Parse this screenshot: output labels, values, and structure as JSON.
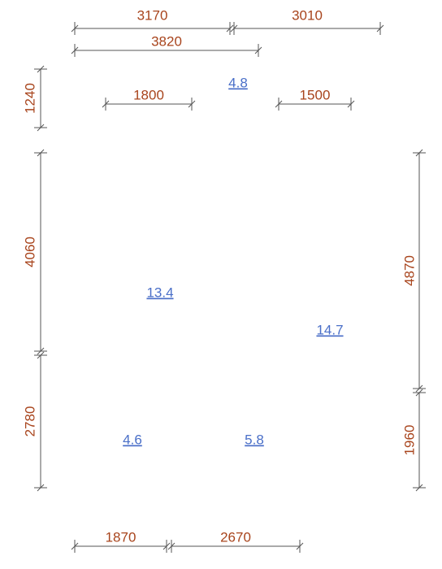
{
  "dimensions": {
    "top": [
      3170,
      3010,
      3820,
      1800,
      1500
    ],
    "left": [
      1240,
      4060,
      2780
    ],
    "right": [
      4870,
      1960
    ],
    "bottom": [
      1870,
      2670
    ]
  },
  "rooms": [
    4.8,
    13.4,
    14.7,
    4.6,
    5.8
  ]
}
